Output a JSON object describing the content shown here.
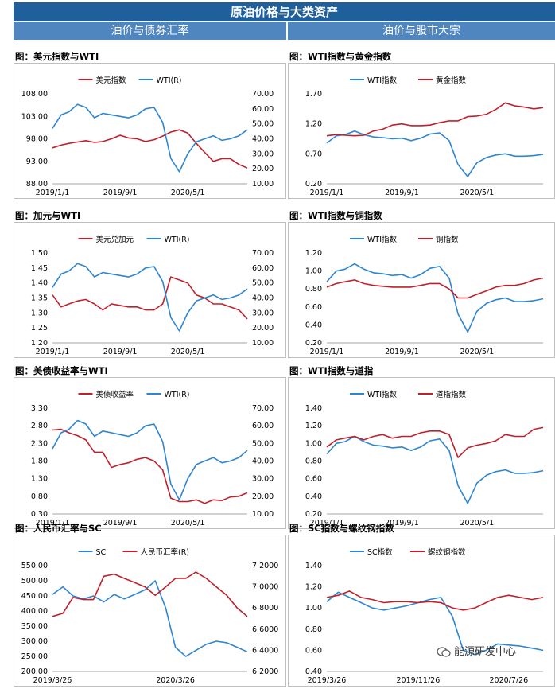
{
  "header": {
    "title": "原油价格与大类资产",
    "section_left": "油价与债券汇率",
    "section_right": "油价与股市大宗"
  },
  "watermark": "能源研发中心",
  "colors": {
    "red": "#c0202b",
    "blue": "#2e86d1",
    "banner": "#1f5f9c",
    "section": "#4f86c0"
  },
  "chart_data": [
    {
      "id": "usd",
      "type": "line",
      "title": "图：美元指数与WTI",
      "xticks": [
        "2019/1/1",
        "2019/9/1",
        "2020/5/1"
      ],
      "x_dates": [
        "2019-01-01",
        "2019-02-01",
        "2019-03-01",
        "2019-04-01",
        "2019-05-01",
        "2019-06-01",
        "2019-07-01",
        "2019-08-01",
        "2019-09-01",
        "2019-10-01",
        "2019-11-01",
        "2019-12-01",
        "2020-01-01",
        "2020-02-01",
        "2020-03-01",
        "2020-04-01",
        "2020-05-01",
        "2020-06-01",
        "2020-07-01",
        "2020-08-01",
        "2020-09-01",
        "2020-10-01",
        "2020-11-01",
        "2020-12-01"
      ],
      "left_axis": {
        "ticks": [
          "108.00",
          "103.00",
          "98.00",
          "93.00",
          "88.00"
        ],
        "min": 88,
        "max": 108
      },
      "right_axis": {
        "ticks": [
          "70.00",
          "60.00",
          "50.00",
          "40.00",
          "30.00",
          "20.00",
          "10.00"
        ],
        "min": 10,
        "max": 70
      },
      "series": [
        {
          "name": "美元指数",
          "axis": "left",
          "color": "#c0202b",
          "values": [
            96.0,
            96.6,
            97.0,
            97.3,
            97.6,
            97.2,
            97.4,
            98.0,
            98.8,
            98.2,
            98.0,
            97.4,
            97.8,
            98.6,
            99.5,
            100.0,
            99.3,
            97.0,
            95.0,
            93.0,
            93.6,
            93.6,
            92.3,
            91.5
          ]
        },
        {
          "name": "WTI(R)",
          "axis": "right",
          "color": "#2e86d1",
          "values": [
            47,
            56,
            58,
            63,
            61,
            54,
            57,
            56,
            55,
            54,
            56,
            60,
            61,
            51,
            27,
            18,
            30,
            38,
            40,
            42,
            39,
            40,
            42,
            46
          ]
        }
      ]
    },
    {
      "id": "gold",
      "type": "line",
      "title": "图：WTI指数与黄金指数",
      "xticks": [
        "2019/1/1",
        "2019/9/1",
        "2020/5/1"
      ],
      "x_dates": [
        "2019-01-01",
        "2019-02-01",
        "2019-03-01",
        "2019-04-01",
        "2019-05-01",
        "2019-06-01",
        "2019-07-01",
        "2019-08-01",
        "2019-09-01",
        "2019-10-01",
        "2019-11-01",
        "2019-12-01",
        "2020-01-01",
        "2020-02-01",
        "2020-03-01",
        "2020-04-01",
        "2020-05-01",
        "2020-06-01",
        "2020-07-01",
        "2020-08-01",
        "2020-09-01",
        "2020-10-01",
        "2020-11-01",
        "2020-12-01"
      ],
      "left_axis": {
        "ticks": [
          "1.70",
          "1.20",
          "0.70",
          "0.20"
        ],
        "min": 0.2,
        "max": 1.7
      },
      "series": [
        {
          "name": "WTI指数",
          "color": "#2e86d1",
          "values": [
            0.88,
            1.0,
            1.02,
            1.08,
            1.02,
            0.98,
            0.97,
            0.95,
            0.96,
            0.92,
            0.96,
            1.03,
            1.05,
            0.92,
            0.52,
            0.32,
            0.55,
            0.64,
            0.68,
            0.7,
            0.66,
            0.66,
            0.67,
            0.69
          ]
        },
        {
          "name": "黄金指数",
          "color": "#c0202b",
          "values": [
            1.0,
            1.02,
            1.01,
            1.0,
            1.01,
            1.08,
            1.11,
            1.18,
            1.2,
            1.17,
            1.17,
            1.18,
            1.22,
            1.25,
            1.25,
            1.32,
            1.33,
            1.36,
            1.44,
            1.55,
            1.5,
            1.48,
            1.45,
            1.47
          ]
        }
      ]
    },
    {
      "id": "cad",
      "type": "line",
      "title": "图：加元与WTI",
      "xticks": [
        "2019/1/1",
        "2019/9/1",
        "2020/5/1"
      ],
      "x_dates": [
        "2019-01-01",
        "2019-02-01",
        "2019-03-01",
        "2019-04-01",
        "2019-05-01",
        "2019-06-01",
        "2019-07-01",
        "2019-08-01",
        "2019-09-01",
        "2019-10-01",
        "2019-11-01",
        "2019-12-01",
        "2020-01-01",
        "2020-02-01",
        "2020-03-01",
        "2020-04-01",
        "2020-05-01",
        "2020-06-01",
        "2020-07-01",
        "2020-08-01",
        "2020-09-01",
        "2020-10-01",
        "2020-11-01",
        "2020-12-01"
      ],
      "left_axis": {
        "ticks": [
          "1.50",
          "1.45",
          "1.40",
          "1.35",
          "1.30",
          "1.25",
          "1.20"
        ],
        "min": 1.2,
        "max": 1.5
      },
      "right_axis": {
        "ticks": [
          "70.00",
          "60.00",
          "50.00",
          "40.00",
          "30.00",
          "20.00",
          "10.00"
        ],
        "min": 10,
        "max": 70
      },
      "series": [
        {
          "name": "美元兑加元",
          "axis": "left",
          "color": "#c0202b",
          "values": [
            1.36,
            1.32,
            1.33,
            1.34,
            1.345,
            1.33,
            1.31,
            1.33,
            1.325,
            1.32,
            1.32,
            1.31,
            1.31,
            1.33,
            1.42,
            1.41,
            1.4,
            1.36,
            1.35,
            1.33,
            1.33,
            1.32,
            1.31,
            1.28
          ]
        },
        {
          "name": "WTI(R)",
          "axis": "right",
          "color": "#2e86d1",
          "values": [
            47,
            56,
            58,
            63,
            61,
            54,
            57,
            56,
            55,
            54,
            56,
            60,
            61,
            51,
            27,
            18,
            30,
            38,
            40,
            42,
            39,
            40,
            42,
            46
          ]
        }
      ]
    },
    {
      "id": "copper",
      "type": "line",
      "title": "图：WTI指数与铜指数",
      "xticks": [
        "2019/1/1",
        "2019/9/1",
        "2020/5/1"
      ],
      "x_dates": [
        "2019-01-01",
        "2019-02-01",
        "2019-03-01",
        "2019-04-01",
        "2019-05-01",
        "2019-06-01",
        "2019-07-01",
        "2019-08-01",
        "2019-09-01",
        "2019-10-01",
        "2019-11-01",
        "2019-12-01",
        "2020-01-01",
        "2020-02-01",
        "2020-03-01",
        "2020-04-01",
        "2020-05-01",
        "2020-06-01",
        "2020-07-01",
        "2020-08-01",
        "2020-09-01",
        "2020-10-01",
        "2020-11-01",
        "2020-12-01"
      ],
      "left_axis": {
        "ticks": [
          "1.20",
          "1.00",
          "0.80",
          "0.60",
          "0.40",
          "0.20"
        ],
        "min": 0.2,
        "max": 1.2
      },
      "series": [
        {
          "name": "WTI指数",
          "color": "#2e86d1",
          "values": [
            0.88,
            1.0,
            1.02,
            1.08,
            1.02,
            0.98,
            0.97,
            0.95,
            0.96,
            0.92,
            0.96,
            1.03,
            1.05,
            0.92,
            0.52,
            0.32,
            0.55,
            0.64,
            0.68,
            0.7,
            0.66,
            0.66,
            0.67,
            0.69
          ]
        },
        {
          "name": "铜指数",
          "color": "#c0202b",
          "values": [
            0.82,
            0.86,
            0.88,
            0.9,
            0.86,
            0.84,
            0.83,
            0.82,
            0.82,
            0.82,
            0.84,
            0.86,
            0.86,
            0.8,
            0.7,
            0.7,
            0.74,
            0.78,
            0.82,
            0.84,
            0.84,
            0.86,
            0.9,
            0.92
          ]
        }
      ]
    },
    {
      "id": "ust",
      "type": "line",
      "title": "图：美债收益率与WTI",
      "xticks": [
        "2019/1/1",
        "2019/9/1",
        "2020/5/1"
      ],
      "x_dates": [
        "2019-01-01",
        "2019-02-01",
        "2019-03-01",
        "2019-04-01",
        "2019-05-01",
        "2019-06-01",
        "2019-07-01",
        "2019-08-01",
        "2019-09-01",
        "2019-10-01",
        "2019-11-01",
        "2019-12-01",
        "2020-01-01",
        "2020-02-01",
        "2020-03-01",
        "2020-04-01",
        "2020-05-01",
        "2020-06-01",
        "2020-07-01",
        "2020-08-01",
        "2020-09-01",
        "2020-10-01",
        "2020-11-01",
        "2020-12-01"
      ],
      "left_axis": {
        "ticks": [
          "3.30",
          "2.80",
          "2.30",
          "1.80",
          "1.30",
          "0.80",
          "0.30"
        ],
        "min": 0.3,
        "max": 3.3
      },
      "right_axis": {
        "ticks": [
          "70.00",
          "60.00",
          "50.00",
          "40.00",
          "30.00",
          "20.00",
          "10.00"
        ],
        "min": 10,
        "max": 70
      },
      "series": [
        {
          "name": "美债收益率",
          "axis": "left",
          "color": "#c0202b",
          "values": [
            2.68,
            2.7,
            2.6,
            2.52,
            2.4,
            2.05,
            2.05,
            1.62,
            1.7,
            1.75,
            1.85,
            1.9,
            1.8,
            1.55,
            0.75,
            0.65,
            0.65,
            0.7,
            0.6,
            0.7,
            0.68,
            0.78,
            0.8,
            0.9
          ]
        },
        {
          "name": "WTI(R)",
          "axis": "right",
          "color": "#2e86d1",
          "values": [
            47,
            56,
            58,
            63,
            61,
            54,
            57,
            56,
            55,
            54,
            56,
            60,
            61,
            51,
            27,
            18,
            30,
            38,
            40,
            42,
            39,
            40,
            42,
            46
          ]
        }
      ]
    },
    {
      "id": "dow",
      "type": "line",
      "title": "图：WTI指数与道指",
      "xticks": [
        "2019/1/1",
        "2019/9/1",
        "2020/5/1"
      ],
      "x_dates": [
        "2019-01-01",
        "2019-02-01",
        "2019-03-01",
        "2019-04-01",
        "2019-05-01",
        "2019-06-01",
        "2019-07-01",
        "2019-08-01",
        "2019-09-01",
        "2019-10-01",
        "2019-11-01",
        "2019-12-01",
        "2020-01-01",
        "2020-02-01",
        "2020-03-01",
        "2020-04-01",
        "2020-05-01",
        "2020-06-01",
        "2020-07-01",
        "2020-08-01",
        "2020-09-01",
        "2020-10-01",
        "2020-11-01",
        "2020-12-01"
      ],
      "left_axis": {
        "ticks": [
          "1.40",
          "1.20",
          "1.00",
          "0.80",
          "0.60",
          "0.40",
          "0.20"
        ],
        "min": 0.2,
        "max": 1.4
      },
      "series": [
        {
          "name": "WTI指数",
          "color": "#2e86d1",
          "values": [
            0.88,
            1.0,
            1.02,
            1.08,
            1.02,
            0.98,
            0.97,
            0.95,
            0.96,
            0.92,
            0.96,
            1.03,
            1.05,
            0.92,
            0.52,
            0.32,
            0.55,
            0.64,
            0.68,
            0.7,
            0.66,
            0.66,
            0.67,
            0.69
          ]
        },
        {
          "name": "道指指数",
          "color": "#c0202b",
          "values": [
            0.96,
            1.04,
            1.06,
            1.08,
            1.04,
            1.08,
            1.1,
            1.06,
            1.08,
            1.08,
            1.12,
            1.14,
            1.14,
            1.1,
            0.84,
            0.95,
            0.98,
            1.0,
            1.03,
            1.1,
            1.08,
            1.08,
            1.16,
            1.18
          ]
        }
      ]
    },
    {
      "id": "cny",
      "type": "line",
      "title": "图：人民币汇率与SC",
      "xticks": [
        "2019/3/26",
        "2020/3/26"
      ],
      "x_dates": [
        "2019-03-26",
        "2019-04-26",
        "2019-05-26",
        "2019-06-26",
        "2019-07-26",
        "2019-08-26",
        "2019-09-26",
        "2019-10-26",
        "2019-11-26",
        "2019-12-26",
        "2020-01-26",
        "2020-02-26",
        "2020-03-26",
        "2020-04-26",
        "2020-05-26",
        "2020-06-26",
        "2020-07-26",
        "2020-08-26",
        "2020-09-26",
        "2020-10-26"
      ],
      "left_axis": {
        "ticks": [
          "550.00",
          "500.00",
          "450.00",
          "400.00",
          "350.00",
          "300.00",
          "250.00",
          "200.00"
        ],
        "min": 200,
        "max": 550
      },
      "right_axis": {
        "ticks": [
          "7.2000",
          "7.0000",
          "6.8000",
          "6.6000",
          "6.4000",
          "6.2000"
        ],
        "min": 6.2,
        "max": 7.2
      },
      "series": [
        {
          "name": "SC",
          "axis": "left",
          "color": "#2e86d1",
          "values": [
            455,
            480,
            450,
            440,
            450,
            430,
            455,
            440,
            455,
            470,
            500,
            410,
            280,
            250,
            270,
            290,
            300,
            295,
            280,
            265
          ]
        },
        {
          "name": "人民币汇率(R)",
          "axis": "right",
          "color": "#c0202b",
          "values": [
            6.72,
            6.75,
            6.9,
            6.88,
            6.88,
            7.1,
            7.12,
            7.08,
            7.04,
            7.0,
            6.92,
            7.0,
            7.08,
            7.08,
            7.14,
            7.08,
            7.0,
            6.92,
            6.8,
            6.72
          ]
        }
      ]
    },
    {
      "id": "rebar",
      "type": "line",
      "title": "图：SC指数与螺纹钢指数",
      "xticks": [
        "2019/3/26",
        "2019/11/26",
        "2020/7/26"
      ],
      "x_dates": [
        "2019-03-26",
        "2019-04-26",
        "2019-05-26",
        "2019-06-26",
        "2019-07-26",
        "2019-08-26",
        "2019-09-26",
        "2019-10-26",
        "2019-11-26",
        "2019-12-26",
        "2020-01-26",
        "2020-02-26",
        "2020-03-26",
        "2020-04-26",
        "2020-05-26",
        "2020-06-26",
        "2020-07-26",
        "2020-08-26",
        "2020-09-26",
        "2020-10-26"
      ],
      "left_axis": {
        "ticks": [
          "1.40",
          "1.20",
          "1.00",
          "0.80",
          "0.60",
          "0.40"
        ],
        "min": 0.4,
        "max": 1.4
      },
      "series": [
        {
          "name": "SC指数",
          "color": "#2e86d1",
          "values": [
            1.06,
            1.15,
            1.1,
            1.05,
            1.0,
            0.98,
            1.0,
            1.02,
            1.05,
            1.08,
            1.1,
            0.92,
            0.6,
            0.56,
            0.6,
            0.66,
            0.65,
            0.64,
            0.62,
            0.6
          ]
        },
        {
          "name": "螺纹钢指数",
          "color": "#c0202b",
          "values": [
            1.1,
            1.12,
            1.16,
            1.1,
            1.08,
            1.05,
            1.06,
            1.06,
            1.05,
            1.06,
            1.05,
            1.0,
            0.98,
            1.0,
            1.05,
            1.1,
            1.12,
            1.1,
            1.08,
            1.1
          ]
        }
      ]
    }
  ]
}
